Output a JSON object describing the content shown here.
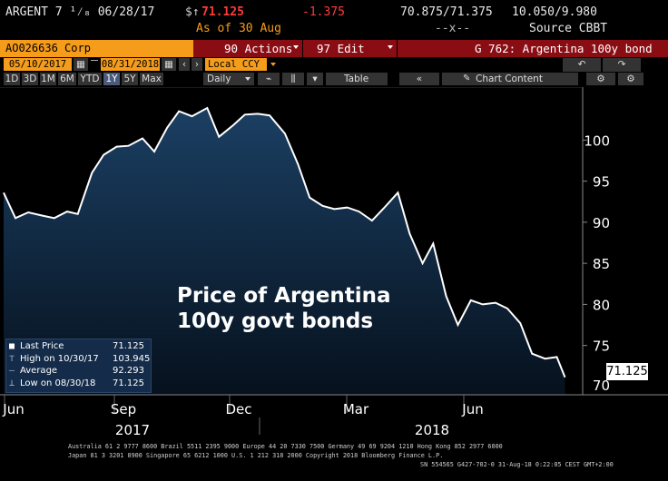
{
  "header": {
    "ticker": "ARGENT 7 ¹⁄₈ 06/28/17",
    "price_arrow": "$↑",
    "price": "71.125",
    "change": "-1.375",
    "bid_ask": "70.875/71.375",
    "yield": "10.050/9.980",
    "as_of": "As of 30 Aug",
    "dashes": "--x--",
    "source": "Source CBBT"
  },
  "bar2": {
    "security": "AO026636 Corp",
    "actions": "90 Actions",
    "edit": "97 Edit",
    "page_title": "G 762: Argentina 100y bond"
  },
  "bar3": {
    "start_date": "05/10/2017",
    "end_date": "08/31/2018",
    "currency": "Local CCY"
  },
  "bar4": {
    "periods": [
      "1D",
      "3D",
      "1M",
      "6M",
      "YTD",
      "1Y",
      "5Y",
      "Max"
    ],
    "active_period": "1Y",
    "interval": "Daily",
    "table": "Table",
    "chart_content": "Chart Content"
  },
  "legend": {
    "rows": [
      {
        "label": "Last Price",
        "value": "71.125"
      },
      {
        "label": "High on 10/30/17",
        "value": "103.945"
      },
      {
        "label": "Average",
        "value": "92.293"
      },
      {
        "label": "Low on 08/30/18",
        "value": "71.125"
      }
    ]
  },
  "annotation": {
    "line1": "Price of Argentina",
    "line2": "100y govt bonds"
  },
  "last_price_tag": "71.125",
  "x_month_labels": [
    "Jun",
    "Sep",
    "Dec",
    "Mar",
    "Jun"
  ],
  "x_year_labels": [
    "2017",
    "2018"
  ],
  "footer": {
    "line1": "Australia 61 2 9777 8600 Brazil 5511 2395 9000 Europe 44 20 7330 7500 Germany 49 69 9204 1210 Hong Kong 852 2977 6000",
    "line2": "Japan 81 3 3201 8900        Singapore 65 6212 1000        U.S. 1 212 318 2000        Copyright 2018 Bloomberg Finance L.P.",
    "line3": "SN 554565 G427-702-0 31-Aug-18  0:22:05 CEST GMT+2:00"
  },
  "colors": {
    "accent": "#f59c1a",
    "bar": "#8b0d14",
    "area_top": "#1b3f63",
    "line": "#ffffff"
  },
  "chart_data": {
    "type": "area",
    "title": "",
    "ylim": [
      69,
      106
    ],
    "yticks": [
      75,
      80,
      85,
      90,
      95,
      100
    ],
    "grid": false,
    "x": [
      "2017-05-10",
      "2017-05-20",
      "2017-05-31",
      "2017-06-12",
      "2017-06-22",
      "2017-07-03",
      "2017-07-12",
      "2017-07-24",
      "2017-08-03",
      "2017-08-14",
      "2017-08-24",
      "2017-09-05",
      "2017-09-15",
      "2017-09-26",
      "2017-10-06",
      "2017-10-17",
      "2017-10-30",
      "2017-11-09",
      "2017-11-21",
      "2017-12-01",
      "2017-12-12",
      "2017-12-22",
      "2018-01-04",
      "2018-01-15",
      "2018-01-25",
      "2018-02-05",
      "2018-02-15",
      "2018-02-26",
      "2018-03-08",
      "2018-03-19",
      "2018-03-29",
      "2018-04-10",
      "2018-04-20",
      "2018-05-01",
      "2018-05-10",
      "2018-05-21",
      "2018-05-31",
      "2018-06-11",
      "2018-06-21",
      "2018-07-02",
      "2018-07-12",
      "2018-07-23",
      "2018-08-02",
      "2018-08-13",
      "2018-08-23",
      "2018-08-30"
    ],
    "series": [
      {
        "values": [
          93.6,
          90.5,
          91.2,
          90.8,
          90.5,
          91.3,
          91.0,
          96.0,
          98.2,
          99.2,
          99.3,
          100.2,
          98.6,
          101.5,
          103.5,
          102.9,
          103.9,
          100.4,
          101.8,
          103.1,
          103.2,
          103.0,
          100.8,
          97.1,
          93.0,
          92.0,
          91.6,
          91.8,
          91.3,
          90.2,
          91.7,
          93.6,
          88.6,
          85.0,
          87.4,
          81.0,
          77.5,
          80.5,
          80.0,
          80.2,
          79.5,
          77.7,
          74.0,
          73.4,
          73.6,
          71.125
        ]
      }
    ]
  }
}
